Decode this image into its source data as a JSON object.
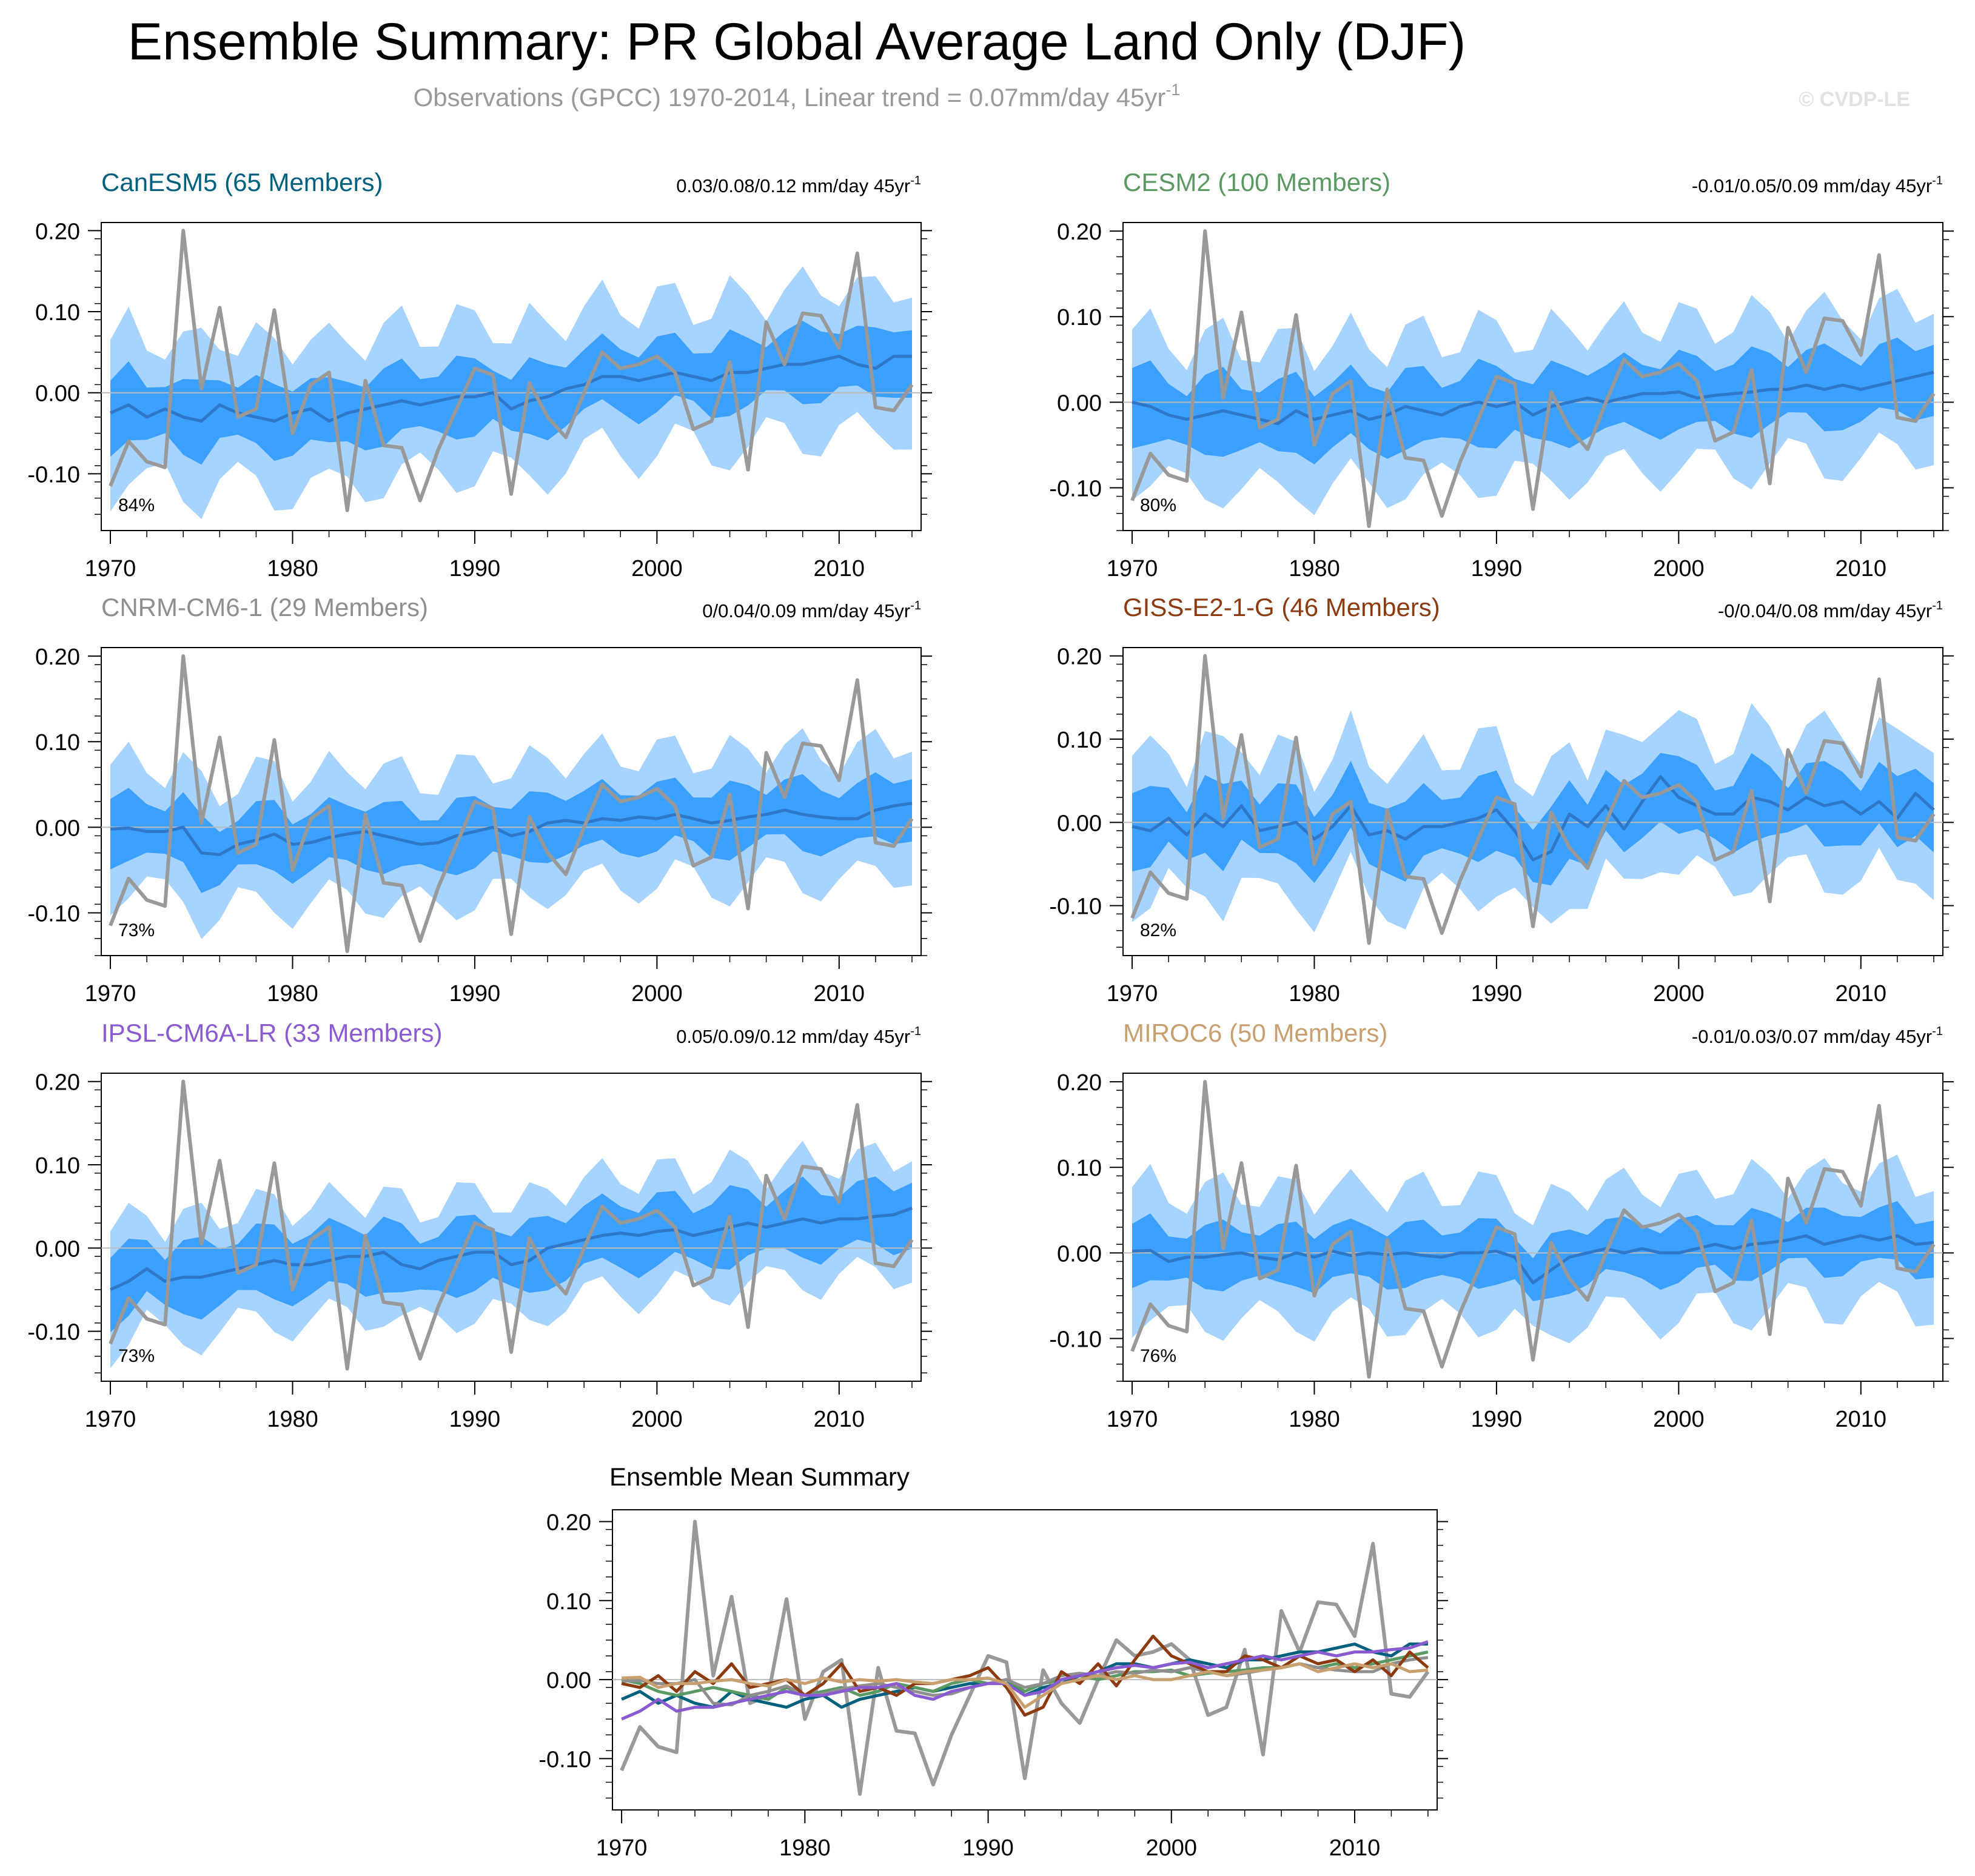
{
  "header": {
    "title": "Ensemble Summary: PR Global Average Land Only (DJF)",
    "subtitle_main": "Observations (GPCC) 1970-2014, Linear trend = 0.07mm/day 45yr",
    "subtitle_sup": "-1",
    "watermark": "© CVDP-LE"
  },
  "colors": {
    "obs": "#999999",
    "outer_band": "#a6d3ff",
    "inner_band": "#3ba0ff",
    "ens_mean": "#2f78c8",
    "zero_line": "#bbbbbb"
  },
  "chart_data": {
    "type": "line",
    "years": [
      1970,
      1971,
      1972,
      1973,
      1974,
      1975,
      1976,
      1977,
      1978,
      1979,
      1980,
      1981,
      1982,
      1983,
      1984,
      1985,
      1986,
      1987,
      1988,
      1989,
      1990,
      1991,
      1992,
      1993,
      1994,
      1995,
      1996,
      1997,
      1998,
      1999,
      2000,
      2001,
      2002,
      2003,
      2004,
      2005,
      2006,
      2007,
      2008,
      2009,
      2010,
      2011,
      2012,
      2013,
      2014
    ],
    "x_ticks": [
      1970,
      1980,
      1990,
      2000,
      2010
    ],
    "y_ticks": [
      0.2,
      0.1,
      0.0,
      -0.1
    ],
    "y_tick_labels": [
      "0.20",
      "0.10",
      "0.00",
      "-0.10"
    ],
    "ylim": [
      -0.17,
      0.21
    ],
    "xlim": [
      1969.5,
      2014.5
    ],
    "observations": {
      "name": "Observations (GPCC)",
      "values": [
        -0.115,
        -0.06,
        -0.085,
        -0.092,
        0.2,
        0.005,
        0.105,
        -0.03,
        -0.02,
        0.102,
        -0.05,
        0.01,
        0.025,
        -0.145,
        0.015,
        -0.065,
        -0.068,
        -0.133,
        -0.07,
        -0.02,
        0.03,
        0.022,
        -0.125,
        0.012,
        -0.03,
        -0.055,
        0.0,
        0.05,
        0.03,
        0.035,
        0.045,
        0.025,
        -0.045,
        -0.035,
        0.038,
        -0.095,
        0.087,
        0.035,
        0.098,
        0.095,
        0.055,
        0.172,
        -0.018,
        -0.022,
        0.01
      ]
    },
    "panels": [
      {
        "model": "CanESM5 (65 Members)",
        "color": "#00607e",
        "trend": "0.03/0.08/0.12 mm/day 45yr",
        "trend_sup": "-1",
        "pct": "84%",
        "ylim": [
          -0.17,
          0.21
        ],
        "mean": [
          -0.025,
          -0.015,
          -0.03,
          -0.02,
          -0.03,
          -0.035,
          -0.015,
          -0.025,
          -0.03,
          -0.035,
          -0.025,
          -0.02,
          -0.035,
          -0.025,
          -0.02,
          -0.015,
          -0.01,
          -0.015,
          -0.01,
          -0.005,
          -0.005,
          0.0,
          -0.02,
          -0.01,
          -0.005,
          0.005,
          0.01,
          0.02,
          0.02,
          0.015,
          0.02,
          0.025,
          0.02,
          0.015,
          0.025,
          0.025,
          0.03,
          0.035,
          0.035,
          0.04,
          0.045,
          0.035,
          0.03,
          0.045,
          0.045
        ],
        "inner": 0.04,
        "outer": 0.09
      },
      {
        "model": "CESM2 (100 Members)",
        "color": "#5a9a62",
        "trend": "-0.01/0.05/0.09 mm/day 45yr",
        "trend_sup": "-1",
        "pct": "80%",
        "ylim": [
          -0.15,
          0.21
        ],
        "mean": [
          0.0,
          -0.005,
          -0.015,
          -0.02,
          -0.015,
          -0.01,
          -0.015,
          -0.02,
          -0.025,
          -0.01,
          -0.02,
          -0.015,
          -0.01,
          -0.02,
          -0.015,
          -0.005,
          -0.01,
          -0.015,
          -0.005,
          0.0,
          -0.005,
          0.0,
          -0.015,
          -0.005,
          0.0,
          0.005,
          0.0,
          0.005,
          0.01,
          0.01,
          0.012,
          0.005,
          0.008,
          0.01,
          0.012,
          0.015,
          0.015,
          0.02,
          0.015,
          0.02,
          0.015,
          0.02,
          0.025,
          0.03,
          0.035
        ],
        "inner": 0.04,
        "outer": 0.085
      },
      {
        "model": "CNRM-CM6-1 (29 Members)",
        "color": "#8f8f8f",
        "trend": "0/0.04/0.09 mm/day 45yr",
        "trend_sup": "-1",
        "pct": "73%",
        "ylim": [
          -0.15,
          0.21
        ],
        "mean": [
          -0.002,
          -0.001,
          -0.005,
          -0.005,
          0.0,
          -0.03,
          -0.032,
          -0.02,
          -0.015,
          -0.008,
          -0.02,
          -0.018,
          -0.012,
          -0.008,
          -0.005,
          -0.01,
          -0.015,
          -0.02,
          -0.018,
          -0.01,
          -0.005,
          0.0,
          -0.01,
          -0.005,
          0.005,
          0.008,
          0.005,
          0.01,
          0.008,
          0.012,
          0.01,
          0.015,
          0.01,
          0.005,
          0.008,
          0.012,
          0.015,
          0.02,
          0.015,
          0.012,
          0.01,
          0.01,
          0.02,
          0.025,
          0.028
        ],
        "inner": 0.035,
        "outer": 0.075
      },
      {
        "model": "GISS-E2-1-G (46 Members)",
        "color": "#8c3a10",
        "trend": "-0/0.04/0.08 mm/day 45yr",
        "trend_sup": "-1",
        "pct": "82%",
        "ylim": [
          -0.16,
          0.21
        ],
        "mean": [
          -0.005,
          -0.01,
          0.005,
          -0.015,
          0.01,
          -0.005,
          0.02,
          -0.01,
          -0.005,
          0.0,
          -0.02,
          -0.005,
          0.02,
          -0.015,
          -0.01,
          -0.02,
          -0.005,
          -0.005,
          0.0,
          0.005,
          0.015,
          -0.01,
          -0.045,
          -0.035,
          0.01,
          -0.005,
          0.02,
          -0.008,
          0.025,
          0.055,
          0.03,
          0.02,
          0.01,
          0.01,
          0.03,
          0.025,
          0.015,
          0.03,
          0.02,
          0.025,
          0.01,
          0.025,
          0.005,
          0.035,
          0.015
        ],
        "inner": 0.04,
        "outer": 0.085
      },
      {
        "model": "IPSL-CM6A-LR (33 Members)",
        "color": "#8a5ad0",
        "trend": "0.05/0.09/0.12 mm/day 45yr",
        "trend_sup": "-1",
        "pct": "73%",
        "ylim": [
          -0.16,
          0.21
        ],
        "mean": [
          -0.05,
          -0.04,
          -0.025,
          -0.04,
          -0.035,
          -0.035,
          -0.03,
          -0.025,
          -0.02,
          -0.015,
          -0.02,
          -0.02,
          -0.015,
          -0.01,
          -0.01,
          -0.005,
          -0.02,
          -0.025,
          -0.015,
          -0.01,
          -0.005,
          -0.005,
          -0.02,
          -0.015,
          0.0,
          0.005,
          0.01,
          0.015,
          0.018,
          0.015,
          0.02,
          0.022,
          0.015,
          0.02,
          0.025,
          0.03,
          0.025,
          0.03,
          0.035,
          0.03,
          0.035,
          0.035,
          0.038,
          0.04,
          0.048
        ],
        "inner": 0.038,
        "outer": 0.07
      },
      {
        "model": "MIROC6 (50 Members)",
        "color": "#c8a070",
        "trend": "-0.01/0.03/0.07 mm/day 45yr",
        "trend_sup": "-1",
        "pct": "76%",
        "ylim": [
          -0.15,
          0.21
        ],
        "mean": [
          0.002,
          0.003,
          -0.01,
          -0.005,
          -0.005,
          -0.002,
          0.0,
          -0.005,
          -0.008,
          0.0,
          -0.005,
          0.002,
          -0.003,
          0.0,
          -0.002,
          0.0,
          -0.003,
          -0.005,
          0.0,
          0.0,
          0.002,
          -0.005,
          -0.035,
          -0.02,
          -0.005,
          0.0,
          0.005,
          0.0,
          0.005,
          0.0,
          0.0,
          0.005,
          0.01,
          0.005,
          0.01,
          0.012,
          0.015,
          0.02,
          0.01,
          0.015,
          0.02,
          0.015,
          0.02,
          0.01,
          0.012
        ],
        "inner": 0.032,
        "outer": 0.075
      }
    ],
    "summary": {
      "title": "Ensemble Mean Summary",
      "ylim": [
        -0.165,
        0.215
      ]
    }
  }
}
